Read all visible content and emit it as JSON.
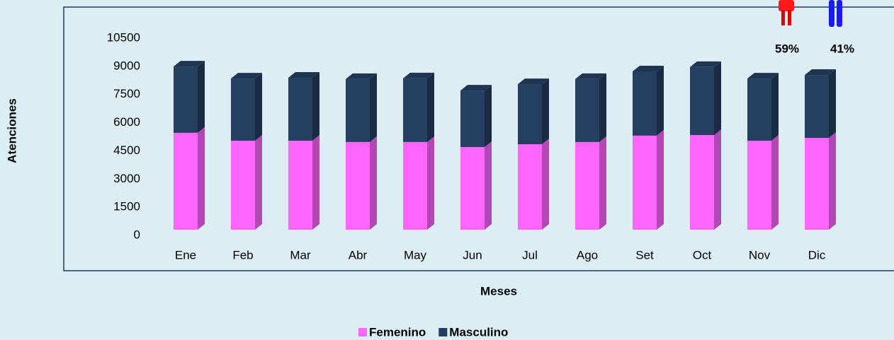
{
  "chart_data": {
    "type": "bar",
    "stacked": true,
    "x_label": "Meses",
    "y_label": "Atenciones",
    "categories": [
      "Ene",
      "Feb",
      "Mar",
      "Abr",
      "May",
      "Jun",
      "Jul",
      "Ago",
      "Set",
      "Oct",
      "Nov",
      "Dic"
    ],
    "series": [
      {
        "name": "Femenino",
        "color": "#ff66ff",
        "values": [
          5160,
          4740,
          4740,
          4670,
          4670,
          4400,
          4550,
          4670,
          5010,
          5040,
          4740,
          4890
        ]
      },
      {
        "name": "Masculino",
        "color": "#243f60",
        "values": [
          3530,
          3310,
          3350,
          3350,
          3390,
          3010,
          3200,
          3350,
          3420,
          3620,
          3310,
          3350
        ]
      }
    ],
    "ylim": [
      0,
      10500
    ],
    "yticks": [
      0,
      1500,
      3000,
      4500,
      6000,
      7500,
      9000,
      10500
    ],
    "annotations": [
      "59%",
      "41%"
    ],
    "legend": "bottom"
  }
}
